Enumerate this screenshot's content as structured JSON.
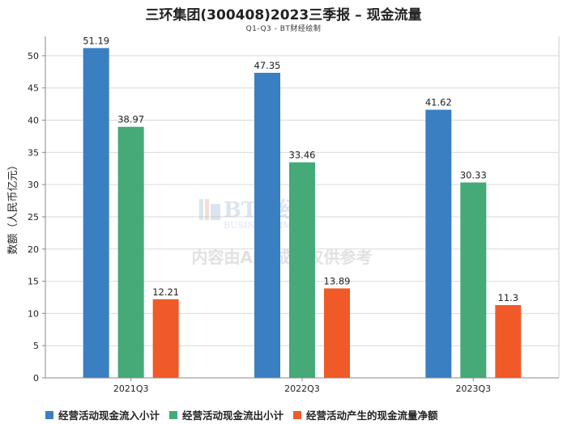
{
  "header": {
    "title": "三环集团(300408)2023三季报 – 现金流量",
    "subtitle": "Q1-Q3 - BT财经绘制"
  },
  "watermark": {
    "brand": "BT财经",
    "brand_en": "BUSINESSTIMES",
    "notice": "内容由AI生成，仅供参考"
  },
  "chart_data": {
    "type": "bar",
    "title": "三环集团(300408)2023三季报 – 现金流量",
    "subtitle": "Q1-Q3 - BT财经绘制",
    "xlabel": "",
    "ylabel": "数额（人民币亿元）",
    "categories": [
      "2021Q3",
      "2022Q3",
      "2023Q3"
    ],
    "ylim": [
      0,
      53
    ],
    "yticks": [
      0,
      5,
      10,
      15,
      20,
      25,
      30,
      35,
      40,
      45,
      50
    ],
    "grid": true,
    "legend_position": "bottom",
    "series": [
      {
        "name": "经营活动现金流入小计",
        "color": "#3a7fc1",
        "values": [
          51.19,
          47.35,
          41.62
        ],
        "labels": [
          "51.19",
          "47.35",
          "41.62"
        ]
      },
      {
        "name": "经营活动现金流出小计",
        "color": "#45aa78",
        "values": [
          38.97,
          33.46,
          30.33
        ],
        "labels": [
          "38.97",
          "33.46",
          "30.33"
        ]
      },
      {
        "name": "经营活动产生的现金流量净额",
        "color": "#f05a28",
        "values": [
          12.21,
          13.89,
          11.3
        ],
        "labels": [
          "12.21",
          "13.89",
          "11.3"
        ]
      }
    ]
  }
}
